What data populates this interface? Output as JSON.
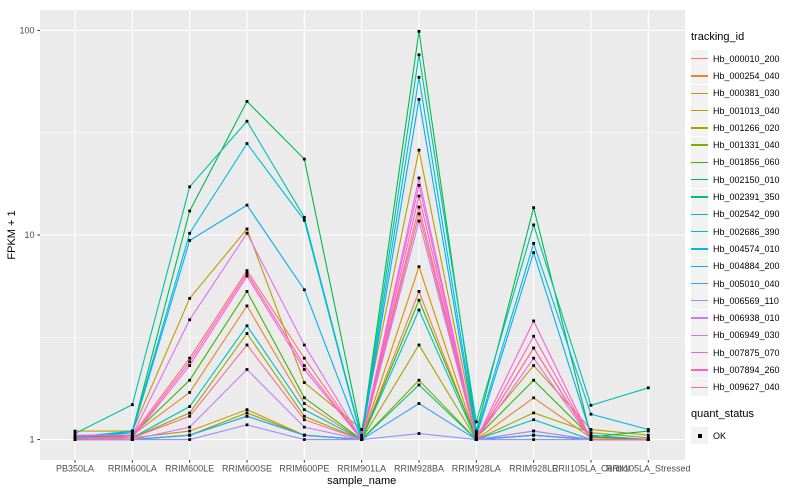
{
  "figure": {
    "background": "#FFFFFF",
    "panel_background": "#EBEBEB",
    "gridline_color": "#FFFFFF",
    "tick_color": "#333333",
    "tick_label_color": "#4D4D4D",
    "point_color": "#000000"
  },
  "legend": {
    "tracking_title": "tracking_id",
    "quant_title": "quant_status",
    "quant_items": [
      {
        "label": "OK",
        "shape": "filled-square",
        "color": "#000000"
      }
    ]
  },
  "chart_data": {
    "type": "line",
    "title": "",
    "xlabel": "sample_name",
    "ylabel": "FPKM + 1",
    "legend_position": "right",
    "grid": true,
    "point_shape": "small black square (quant_status = OK)",
    "y_axis": {
      "scale": "log10",
      "ticks": [
        1,
        10,
        100
      ],
      "minor_ticks": [
        3.162,
        31.62
      ],
      "range_log10": [
        -0.1,
        2.1
      ]
    },
    "categories": [
      "PB350LA",
      "RRIM600LA",
      "RRIM600LE",
      "RRIM600SE",
      "RRIM600PE",
      "RRIM901LA",
      "RRIM928BA",
      "RRIM928LA",
      "RRIM928LE",
      "RRII105LA_Control",
      "RRII105LA_Stressed"
    ],
    "series": [
      {
        "name": "Hb_000010_200",
        "color": "#F8766D",
        "values": [
          1.05,
          1.05,
          2.5,
          6.7,
          2.5,
          1.0,
          12.7,
          1.0,
          2.8,
          1.0,
          1.0
        ]
      },
      {
        "name": "Hb_000254_040",
        "color": "#EA8331",
        "values": [
          1.0,
          1.05,
          1.7,
          4.5,
          1.5,
          1.0,
          5.3,
          1.0,
          1.6,
          1.02,
          1.0
        ]
      },
      {
        "name": "Hb_000381_030",
        "color": "#D89000",
        "values": [
          1.0,
          1.02,
          1.1,
          1.4,
          1.05,
          1.0,
          7.0,
          1.0,
          1.1,
          1.0,
          1.0
        ]
      },
      {
        "name": "Hb_001013_040",
        "color": "#C09B00",
        "values": [
          1.1,
          1.1,
          4.9,
          10.7,
          1.9,
          1.12,
          26,
          1.05,
          2.3,
          1.12,
          1.05
        ]
      },
      {
        "name": "Hb_001266_020",
        "color": "#A3A500",
        "values": [
          1.02,
          1.02,
          1.35,
          3.3,
          1.3,
          1.0,
          2.9,
          1.0,
          1.35,
          1.08,
          1.02
        ]
      },
      {
        "name": "Hb_001331_040",
        "color": "#7CAE00",
        "values": [
          1.0,
          1.0,
          1.05,
          1.35,
          1.05,
          1.0,
          1.95,
          1.0,
          1.05,
          1.0,
          1.0
        ]
      },
      {
        "name": "Hb_001856_060",
        "color": "#39B600",
        "values": [
          1.02,
          1.05,
          1.95,
          5.3,
          1.6,
          1.0,
          4.8,
          1.02,
          1.95,
          1.03,
          1.0
        ]
      },
      {
        "name": "Hb_002150_010",
        "color": "#00BB4E",
        "values": [
          1.0,
          1.1,
          13.1,
          45,
          23.5,
          1.05,
          99,
          1.1,
          13.6,
          1.03,
          1.1
        ]
      },
      {
        "name": "Hb_002391_350",
        "color": "#00BF7D",
        "values": [
          1.0,
          1.0,
          1.05,
          1.3,
          1.05,
          1.0,
          1.85,
          1.0,
          1.05,
          1.0,
          1.0
        ]
      },
      {
        "name": "Hb_002542_090",
        "color": "#00C1A3",
        "values": [
          1.07,
          1.48,
          17.2,
          36,
          12.2,
          1.02,
          76,
          1.22,
          11.2,
          1.47,
          1.79
        ]
      },
      {
        "name": "Hb_002686_390",
        "color": "#00BFC4",
        "values": [
          1.0,
          1.02,
          1.45,
          3.6,
          1.4,
          1.0,
          4.3,
          1.0,
          1.25,
          1.0,
          1.0
        ]
      },
      {
        "name": "Hb_004574_010",
        "color": "#00BAE0",
        "values": [
          1.03,
          1.1,
          10.2,
          28,
          11.8,
          1.0,
          59,
          1.07,
          9.1,
          1.33,
          1.12
        ]
      },
      {
        "name": "Hb_004884_200",
        "color": "#00B0F6",
        "values": [
          1.02,
          1.08,
          9.4,
          14,
          5.4,
          1.0,
          46,
          1.03,
          8.2,
          1.05,
          1.0
        ]
      },
      {
        "name": "Hb_005010_040",
        "color": "#35A2FF",
        "values": [
          1.0,
          1.0,
          1.05,
          1.3,
          1.05,
          1.0,
          1.5,
          1.0,
          1.05,
          1.0,
          1.0
        ]
      },
      {
        "name": "Hb_006569_110",
        "color": "#9590FF",
        "values": [
          1.0,
          1.0,
          1.0,
          1.18,
          1.0,
          1.0,
          1.07,
          1.0,
          1.0,
          1.0,
          1.0
        ]
      },
      {
        "name": "Hb_006938_010",
        "color": "#C77CFF",
        "values": [
          1.0,
          1.0,
          1.15,
          2.2,
          1.15,
          1.0,
          11.7,
          1.0,
          1.1,
          1.0,
          1.0
        ]
      },
      {
        "name": "Hb_006949_030",
        "color": "#E76BF3",
        "values": [
          1.05,
          1.05,
          3.85,
          10.2,
          2.9,
          1.0,
          19,
          1.0,
          2.5,
          1.0,
          1.0
        ]
      },
      {
        "name": "Hb_007875_070",
        "color": "#FA62DB",
        "values": [
          1.02,
          1.02,
          2.3,
          6.3,
          2.2,
          1.0,
          17.5,
          1.0,
          3.8,
          1.0,
          1.0
        ]
      },
      {
        "name": "Hb_007894_260",
        "color": "#FF62BC",
        "values": [
          1.02,
          1.03,
          2.4,
          6.5,
          2.3,
          1.0,
          15.5,
          1.0,
          3.2,
          1.0,
          1.0
        ]
      },
      {
        "name": "Hb_009627_040",
        "color": "#FF6A98",
        "values": [
          1.0,
          1.02,
          1.3,
          2.9,
          1.25,
          1.0,
          13.7,
          1.0,
          2.8,
          1.0,
          1.0
        ]
      }
    ]
  }
}
